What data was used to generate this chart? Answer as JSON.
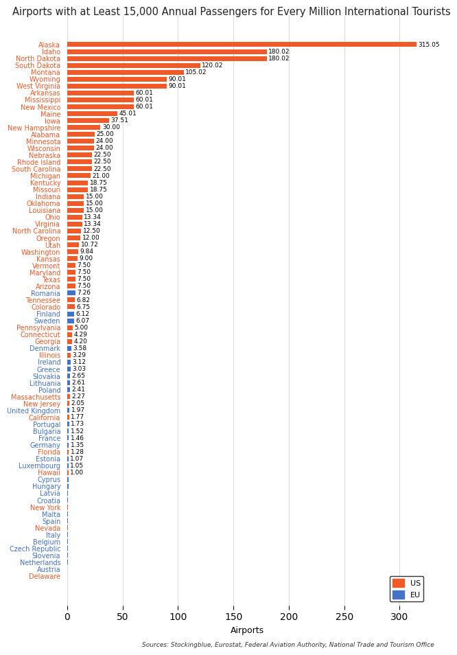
{
  "title": "Airports with at Least 15,000 Annual Passengers for Every Million International Tourists",
  "xlabel": "Airports",
  "source": "Sources: Stockingblue, Eurostat, Federal Aviation Authority, National Trade and Tourism Office",
  "categories": [
    "Alaska",
    "Idaho",
    "North Dakota",
    "South Dakota",
    "Montana",
    "Wyoming",
    "West Virginia",
    "Arkansas",
    "Mississippi",
    "New Mexico",
    "Maine",
    "Iowa",
    "New Hampshire",
    "Alabama",
    "Minnesota",
    "Wisconsin",
    "Nebraska",
    "Rhode Island",
    "South Carolina",
    "Michigan",
    "Kentucky",
    "Missouri",
    "Indiana",
    "Oklahoma",
    "Louisiana",
    "Ohio",
    "Virginia",
    "North Carolina",
    "Oregon",
    "Utah",
    "Washington",
    "Kansas",
    "Vermont",
    "Maryland",
    "Texas",
    "Arizona",
    "Romania",
    "Tennessee",
    "Colorado",
    "Finland",
    "Sweden",
    "Pennsylvania",
    "Connecticut",
    "Georgia",
    "Denmark",
    "Illinois",
    "Ireland",
    "Greece",
    "Slovakia",
    "Lithuania",
    "Poland",
    "Massachusetts",
    "New Jersey",
    "United Kingdom",
    "California",
    "Portugal",
    "Bulgaria",
    "France",
    "Germany",
    "Florida",
    "Estonia",
    "Luxembourg",
    "Hawaii",
    "Cyprus",
    "Hungary",
    "Latvia",
    "Croatia",
    "New York",
    "Malta",
    "Spain",
    "Nevada",
    "Italy",
    "Belgium",
    "Czech Republic",
    "Slovenia",
    "Netherlands",
    "Austria",
    "Delaware"
  ],
  "values": [
    315.05,
    180.02,
    180.02,
    120.02,
    105.02,
    90.01,
    90.01,
    60.01,
    60.01,
    60.01,
    45.01,
    37.51,
    30.0,
    25.0,
    24.0,
    24.0,
    22.5,
    22.5,
    22.5,
    21.0,
    18.75,
    18.75,
    15.0,
    15.0,
    15.0,
    13.34,
    13.34,
    12.5,
    12.0,
    10.72,
    9.84,
    9.0,
    7.5,
    7.5,
    7.5,
    7.5,
    7.26,
    6.82,
    6.75,
    6.12,
    6.07,
    5.0,
    4.29,
    4.2,
    3.58,
    3.29,
    3.12,
    3.03,
    2.65,
    2.61,
    2.41,
    2.27,
    2.05,
    1.97,
    1.77,
    1.73,
    1.52,
    1.46,
    1.35,
    1.28,
    1.07,
    1.05,
    1.0,
    0.99,
    0.96,
    0.91,
    0.93,
    0.84,
    0.84,
    0.79,
    0.75,
    0.75,
    0.66,
    0.65,
    0.43,
    0.43,
    0.28,
    0.0
  ],
  "is_eu": [
    false,
    false,
    false,
    false,
    false,
    false,
    false,
    false,
    false,
    false,
    false,
    false,
    false,
    false,
    false,
    false,
    false,
    false,
    false,
    false,
    false,
    false,
    false,
    false,
    false,
    false,
    false,
    false,
    false,
    false,
    false,
    false,
    false,
    false,
    false,
    false,
    true,
    false,
    false,
    true,
    true,
    false,
    false,
    false,
    true,
    false,
    true,
    true,
    true,
    true,
    true,
    false,
    false,
    true,
    false,
    true,
    true,
    true,
    true,
    false,
    true,
    true,
    false,
    true,
    true,
    true,
    true,
    false,
    true,
    true,
    false,
    true,
    true,
    true,
    true,
    true,
    true,
    false
  ],
  "us_color": "#f05a28",
  "eu_color": "#4472c4",
  "bar_height": 0.7,
  "bg_color": "#ffffff",
  "grid_color": "#cccccc",
  "title_fontsize": 10.5,
  "label_fontsize": 7,
  "value_fontsize": 6.5,
  "value_threshold": 1.0,
  "xlim": [
    0,
    325
  ]
}
